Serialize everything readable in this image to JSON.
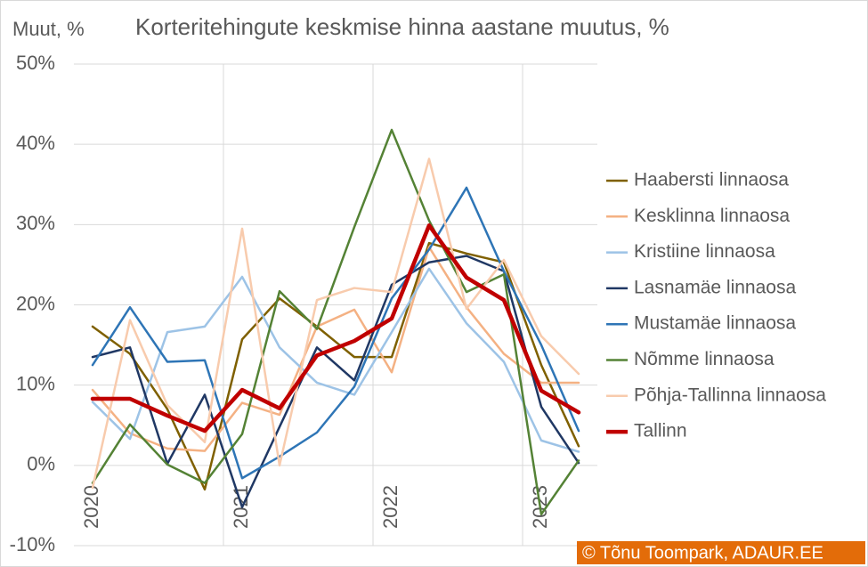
{
  "chart_data": {
    "type": "line",
    "title": "Korteritehingute keskmise hinna aastane muutus, %",
    "y_label": "Muut, %",
    "credit": "© Tõnu Toompark, ADAUR.EE",
    "categories": [
      "2020",
      null,
      null,
      null,
      "2021",
      null,
      null,
      null,
      "2022",
      null,
      null,
      null,
      "2023",
      null
    ],
    "ylim": [
      -10,
      50
    ],
    "yticks": [
      {
        "value": -10,
        "label": "-10%"
      },
      {
        "value": 0,
        "label": "0%"
      },
      {
        "value": 10,
        "label": "10%"
      },
      {
        "value": 20,
        "label": "20%"
      },
      {
        "value": 30,
        "label": "30%"
      },
      {
        "value": 40,
        "label": "40%"
      },
      {
        "value": 50,
        "label": "50%"
      }
    ],
    "grid": true,
    "legend": "right",
    "series": [
      {
        "name": "Haabersti linnaosa",
        "color": "#7f6000",
        "values": [
          17.3,
          13.9,
          7.0,
          -3.0,
          15.7,
          20.8,
          17.3,
          13.5,
          13.5,
          27.7,
          26.4,
          25.3,
          12.5,
          2.4
        ]
      },
      {
        "name": "Kesklinna linnaosa",
        "color": "#f4b183",
        "values": [
          9.4,
          4.0,
          2.1,
          1.8,
          7.8,
          6.3,
          17.3,
          19.4,
          11.6,
          27.2,
          19.7,
          13.9,
          10.3,
          10.3
        ]
      },
      {
        "name": "Kristiine linnaosa",
        "color": "#9dc3e6",
        "values": [
          7.9,
          3.3,
          16.6,
          17.3,
          23.5,
          14.7,
          10.3,
          8.8,
          16.6,
          24.5,
          17.7,
          12.9,
          3.1,
          1.7
        ]
      },
      {
        "name": "Lasnamäe linnaosa",
        "color": "#203864",
        "values": [
          13.5,
          14.7,
          0.2,
          8.8,
          -5.2,
          4.8,
          14.7,
          10.6,
          22.5,
          25.3,
          26.1,
          24.2,
          7.3,
          0.3
        ]
      },
      {
        "name": "Mustamäe linnaosa",
        "color": "#2e75b6",
        "values": [
          12.5,
          19.7,
          12.9,
          13.1,
          -1.6,
          1.1,
          4.1,
          9.8,
          20.8,
          26.9,
          34.6,
          24.2,
          15.0,
          4.3
        ]
      },
      {
        "name": "Nõmme linnaosa",
        "color": "#548235",
        "values": [
          -2.2,
          5.1,
          0.1,
          -2.2,
          3.9,
          21.7,
          17.0,
          29.7,
          41.8,
          30.5,
          21.6,
          23.8,
          -6.1,
          0.6
        ]
      },
      {
        "name": "Põhja-Tallinna linnaosa",
        "color": "#f8cbad",
        "values": [
          -2.8,
          18.1,
          7.5,
          2.9,
          29.5,
          0.0,
          20.6,
          22.1,
          21.6,
          38.2,
          19.5,
          25.6,
          16.1,
          11.4
        ]
      },
      {
        "name": "Tallinn",
        "color": "#c00000",
        "values": [
          8.3,
          8.3,
          6.2,
          4.3,
          9.4,
          7.1,
          13.7,
          15.5,
          18.3,
          29.9,
          23.4,
          20.6,
          9.3,
          6.6
        ]
      }
    ]
  }
}
